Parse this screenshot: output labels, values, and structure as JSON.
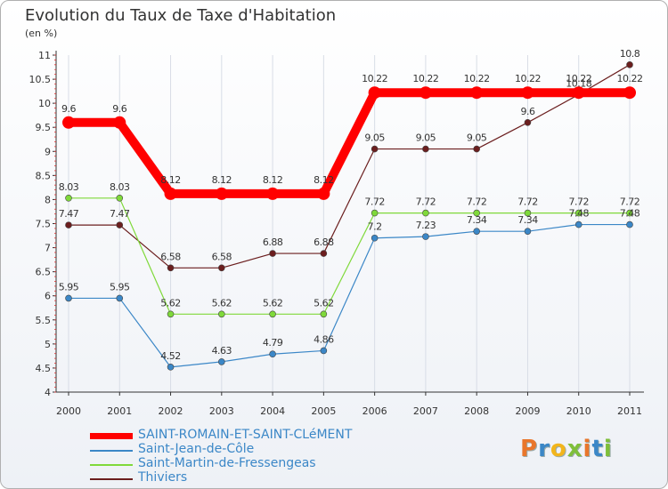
{
  "chart_data": {
    "type": "line",
    "title": "Evolution du Taux de Taxe d'Habitation",
    "subtitle": "(en %)",
    "xlabel": "",
    "ylabel": "",
    "categories": [
      "2000",
      "2001",
      "2002",
      "2003",
      "2004",
      "2005",
      "2006",
      "2007",
      "2008",
      "2009",
      "2010",
      "2011"
    ],
    "ylim": [
      4,
      11
    ],
    "yticks": [
      "4",
      "4.5",
      "5",
      "5.5",
      "6",
      "6.5",
      "7",
      "7.5",
      "8",
      "8.5",
      "9",
      "9.5",
      "10",
      "10.5",
      "11"
    ],
    "ytick_values": [
      4,
      4.5,
      5,
      5.5,
      6,
      6.5,
      7,
      7.5,
      8,
      8.5,
      9,
      9.5,
      10,
      10.5,
      11
    ],
    "legend_position": "bottom-left",
    "series": [
      {
        "name": "SAINT-ROMAIN-ET-SAINT-CLéMENT",
        "color": "#ff0000",
        "values": [
          9.6,
          9.6,
          8.12,
          8.12,
          8.12,
          8.12,
          10.22,
          10.22,
          10.22,
          10.22,
          10.22,
          10.22
        ],
        "labels": [
          "9.6",
          "9.6",
          "8.12",
          "8.12",
          "8.12",
          "8.12",
          "10.22",
          "10.22",
          "10.22",
          "10.22",
          "10.22",
          "10.22"
        ]
      },
      {
        "name": "Saint-Jean-de-Côle",
        "color": "#3b87c7",
        "values": [
          5.95,
          5.95,
          4.52,
          4.63,
          4.79,
          4.86,
          7.2,
          7.23,
          7.34,
          7.34,
          7.48,
          7.48
        ],
        "labels": [
          "5.95",
          "5.95",
          "4.52",
          "4.63",
          "4.79",
          "4.86",
          "7.2",
          "7.23",
          "7.34",
          "7.34",
          "7.48",
          "7.48"
        ]
      },
      {
        "name": "Saint-Martin-de-Fressengeas",
        "color": "#7fd93a",
        "values": [
          8.03,
          8.03,
          5.62,
          5.62,
          5.62,
          5.62,
          7.72,
          7.72,
          7.72,
          7.72,
          7.72,
          7.72
        ],
        "labels": [
          "8.03",
          "8.03",
          "5.62",
          "5.62",
          "5.62",
          "5.62",
          "7.72",
          "7.72",
          "7.72",
          "7.72",
          "7.72",
          "7.72"
        ]
      },
      {
        "name": "Thiviers",
        "color": "#6b1e1e",
        "values": [
          7.47,
          7.47,
          6.58,
          6.58,
          6.88,
          6.88,
          9.05,
          9.05,
          9.05,
          9.6,
          10.18,
          10.8
        ],
        "labels": [
          "7.47",
          "7.47",
          "6.58",
          "6.58",
          "6.88",
          "6.88",
          "9.05",
          "9.05",
          "9.05",
          "9.6",
          "10.18",
          "10.8"
        ]
      }
    ]
  },
  "logo": {
    "text": "Proxiti",
    "letters": [
      "P",
      "r",
      "o",
      "x",
      "i",
      "t",
      "i"
    ]
  }
}
